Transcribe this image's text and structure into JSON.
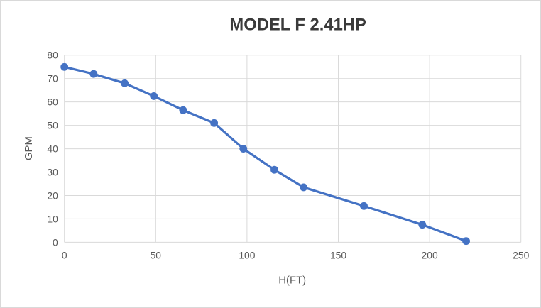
{
  "chart": {
    "title": "MODEL F 2.41HP",
    "xlabel": "H(FT)",
    "ylabel": "GPM"
  },
  "chart_data": {
    "type": "line",
    "title": "MODEL F 2.41HP",
    "xlabel": "H(FT)",
    "ylabel": "GPM",
    "x": [
      0,
      16,
      33,
      49,
      65,
      82,
      98,
      115,
      131,
      164,
      196,
      220
    ],
    "y": [
      75,
      72,
      68,
      62.5,
      56.5,
      51,
      40,
      31,
      23.5,
      15.5,
      7.5,
      0.5
    ],
    "xlim": [
      0,
      250
    ],
    "ylim": [
      0,
      80
    ],
    "x_ticks": [
      0,
      50,
      100,
      150,
      200,
      250
    ],
    "y_ticks": [
      0,
      10,
      20,
      30,
      40,
      50,
      60,
      70,
      80
    ],
    "grid": true,
    "legend": false,
    "marker": "circle",
    "line_color": "#4472C4",
    "gridline_color": "#D9D9D9",
    "tick_label_color": "#595959",
    "axis_label_color": "#595959",
    "title_color": "#3A3A3A",
    "background_color": "#FFFFFF",
    "border_color": "#D9D9D9"
  }
}
